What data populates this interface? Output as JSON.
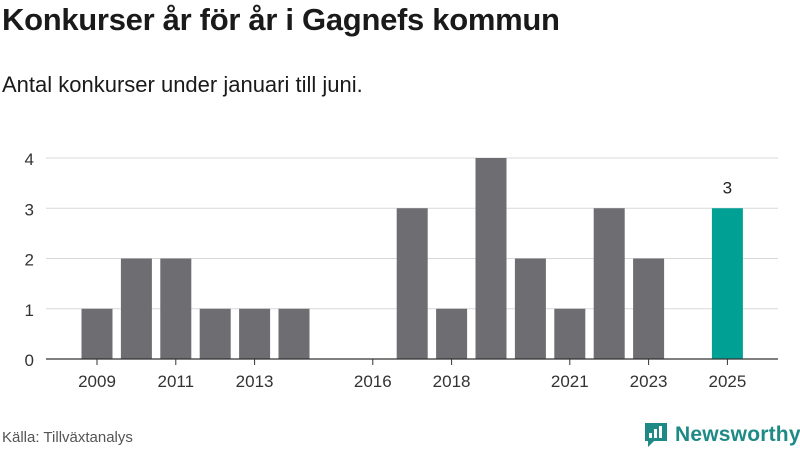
{
  "title": "Konkurser år för år i Gagnefs kommun",
  "subtitle": "Antal konkurser under januari till juni.",
  "source": "Källa: Tillväxtanalys",
  "brand": "Newsworthy",
  "colors": {
    "bar": "#6d6d72",
    "highlight": "#00a095",
    "brand": "#1e8a86"
  },
  "chart_data": {
    "type": "bar",
    "title": "",
    "xlabel": "",
    "ylabel": "",
    "years": [
      2009,
      2010,
      2011,
      2012,
      2013,
      2014,
      2015,
      2016,
      2017,
      2018,
      2019,
      2020,
      2021,
      2022,
      2023,
      2024,
      2025
    ],
    "values": [
      1,
      2,
      2,
      1,
      1,
      1,
      0,
      0,
      3,
      1,
      4,
      2,
      1,
      3,
      2,
      0,
      3
    ],
    "x_tick_labels": [
      "2009",
      "2011",
      "2013",
      "2016",
      "2018",
      "2021",
      "2023",
      "2025"
    ],
    "y_ticks": [
      0,
      1,
      2,
      3,
      4
    ],
    "ylim": [
      0,
      4
    ],
    "highlight_year": 2025,
    "highlight_label": "3",
    "grid": true
  }
}
